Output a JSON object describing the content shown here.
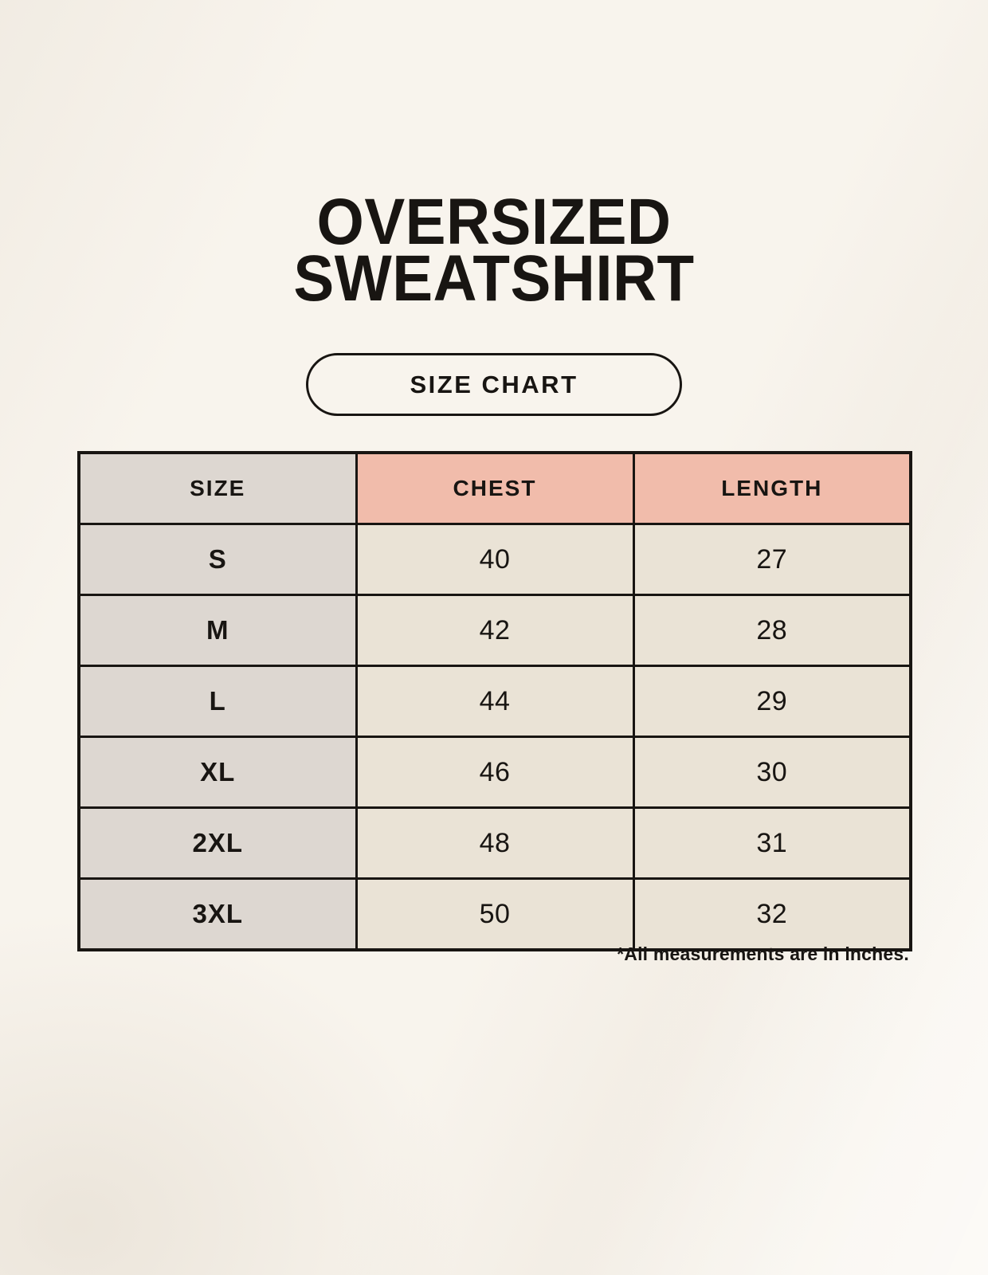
{
  "header": {
    "title_line1": "OVERSIZED",
    "title_line2": "SWEATSHIRT",
    "badge_label": "SIZE CHART"
  },
  "chart_data": {
    "type": "table",
    "title": "OVERSIZED SWEATSHIRT",
    "subtitle": "SIZE CHART",
    "columns": [
      "SIZE",
      "CHEST",
      "LENGTH"
    ],
    "rows": [
      [
        "S",
        40,
        27
      ],
      [
        "M",
        42,
        28
      ],
      [
        "L",
        44,
        29
      ],
      [
        "XL",
        46,
        30
      ],
      [
        "2XL",
        48,
        31
      ],
      [
        "3XL",
        50,
        32
      ]
    ],
    "units_note": "*All measurements are in inches."
  },
  "footnote": "*All measurements are in inches.",
  "colors": {
    "bg": "#f8f4ed",
    "ink": "#181512",
    "line": "#181512",
    "cell_gray": "#ddd7d1",
    "cell_cream": "#eae3d6",
    "accent_pink": "#f1bcab"
  }
}
